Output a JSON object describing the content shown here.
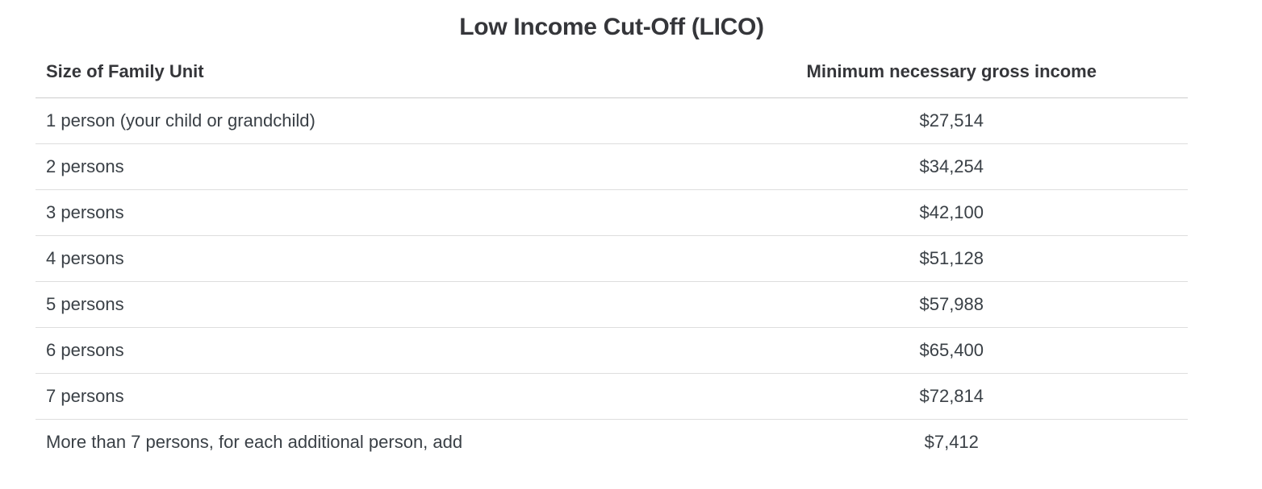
{
  "page_title": "Low Income Cut-Off (LICO)",
  "chart_data": {
    "type": "table",
    "title": "Low Income Cut-Off (LICO)",
    "columns": [
      "Size of Family Unit",
      "Minimum necessary gross income"
    ],
    "rows": [
      [
        "1 person (your child or grandchild)",
        "$27,514"
      ],
      [
        "2 persons",
        "$34,254"
      ],
      [
        "3 persons",
        "$42,100"
      ],
      [
        "4 persons",
        "$51,128"
      ],
      [
        "5 persons",
        "$57,988"
      ],
      [
        "6 persons",
        "$65,400"
      ],
      [
        "7 persons",
        "$72,814"
      ],
      [
        "More than 7 persons, for each additional person, add",
        "$7,412"
      ]
    ],
    "income_values_numeric": [
      27514,
      34254,
      42100,
      51128,
      57988,
      65400,
      72814,
      7412
    ],
    "layout": {
      "header_alignment_col1": "left",
      "header_alignment_col2": "center",
      "value_alignment": "center",
      "grid": "horizontal-dividers-only"
    }
  },
  "colors": {
    "background": "#ffffff",
    "heading_text": "#35363a",
    "body_text": "#3a4046",
    "header_divider": "#cccccc",
    "row_divider": "#dedede"
  }
}
